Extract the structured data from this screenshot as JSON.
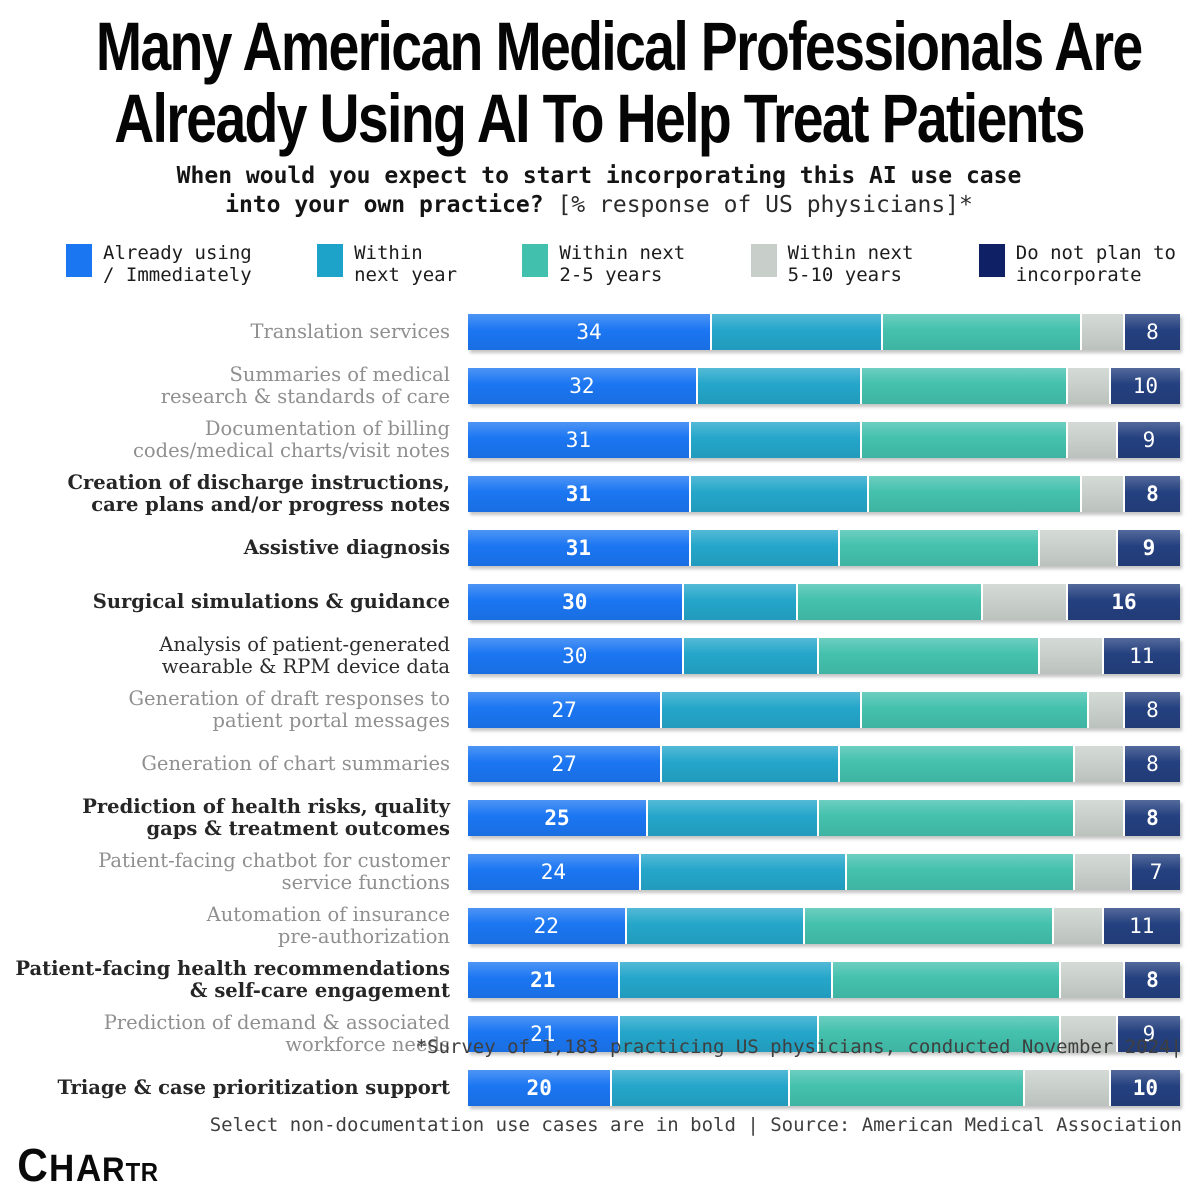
{
  "title": {
    "line1": "Many American Medical Professionals Are",
    "line2": "Already Using AI To Help Treat Patients"
  },
  "subtitle": {
    "line1": "When would you expect to start incorporating this AI use case",
    "line2_bold": "into your own practice?",
    "line2_note": " [% response of US physicians]*"
  },
  "legend": {
    "items": [
      {
        "key": "already-using",
        "label_line1": "Already using",
        "label_line2": "/ Immediately",
        "color": "#1b76f2"
      },
      {
        "key": "within-next-year",
        "label_line1": "Within",
        "label_line2": "next year",
        "color": "#1da2c9"
      },
      {
        "key": "within-2-5-years",
        "label_line1": "Within next",
        "label_line2": "2-5 years",
        "color": "#41c0ad"
      },
      {
        "key": "within-5-10-years",
        "label_line1": "Within next",
        "label_line2": "5-10 years",
        "color": "#c8cfcb"
      },
      {
        "key": "do-not-plan",
        "label_line1": "Do not plan to",
        "label_line2": "incorporate",
        "color": "#0f2064"
      }
    ]
  },
  "colors": {
    "bar_series": [
      "#1b76f2",
      "#24a6ca",
      "#44c1ae",
      "#c9d0cb",
      "#24407f"
    ],
    "label_gray": "#8f8f8f",
    "label_dark": "#262626"
  },
  "chart_data": {
    "type": "bar",
    "stacked": true,
    "orientation": "horizontal",
    "unit": "% of respondents",
    "title": "When would you expect to start incorporating this AI use case into your own practice? [% response of US physicians]*",
    "xlim": [
      0,
      100
    ],
    "grid": false,
    "legend_position": "top",
    "value_labels_shown": "first and last segment of each row",
    "categories": [
      "Translation services",
      "Summaries of medical\nresearch & standards of care",
      "Documentation of billing\ncodes/medical charts/visit notes",
      "Creation of discharge instructions,\ncare plans and/or progress notes",
      "Assistive diagnosis",
      "Surgical simulations & guidance",
      "Analysis of patient-generated\nwearable & RPM device data",
      "Generation of draft responses to\npatient portal messages",
      "Generation of chart summaries",
      "Prediction of health risks, quality\ngaps & treatment outcomes",
      "Patient-facing chatbot for customer\nservice functions",
      "Automation of insurance\npre-authorization",
      "Patient-facing health recommendations\n& self-care engagement",
      "Prediction of demand & associated\nworkforce needs",
      "Triage & case prioritization support"
    ],
    "category_styles": [
      "gray",
      "gray",
      "gray",
      "bold",
      "bold",
      "bold",
      "dark",
      "gray",
      "gray",
      "bold",
      "gray",
      "gray",
      "bold",
      "gray",
      "bold"
    ],
    "series": [
      {
        "name": "Already using / Immediately",
        "values": [
          34,
          32,
          31,
          31,
          31,
          30,
          30,
          27,
          27,
          25,
          24,
          22,
          21,
          21,
          20
        ]
      },
      {
        "name": "Within next year",
        "values": [
          24,
          23,
          24,
          25,
          21,
          16,
          19,
          28,
          25,
          24,
          29,
          25,
          30,
          28,
          25
        ]
      },
      {
        "name": "Within next 2-5 years",
        "values": [
          28,
          29,
          29,
          30,
          28,
          26,
          31,
          32,
          33,
          36,
          32,
          35,
          32,
          34,
          33
        ]
      },
      {
        "name": "Within next 5-10 years",
        "values": [
          6,
          6,
          7,
          6,
          11,
          12,
          9,
          5,
          7,
          7,
          8,
          7,
          9,
          8,
          12
        ]
      },
      {
        "name": "Do not plan to incorporate",
        "values": [
          8,
          10,
          9,
          8,
          9,
          16,
          11,
          8,
          8,
          8,
          7,
          11,
          8,
          9,
          10
        ]
      }
    ]
  },
  "footer": {
    "line1": "*Survey of 1,183 practicing US physicians, conducted November 2024|",
    "line2": "Select non-documentation use cases are in bold | Source: American Medical Association"
  },
  "logo": {
    "text": "Chartr",
    "letters": [
      "C",
      "H",
      "A",
      "R",
      "T",
      "R"
    ]
  }
}
